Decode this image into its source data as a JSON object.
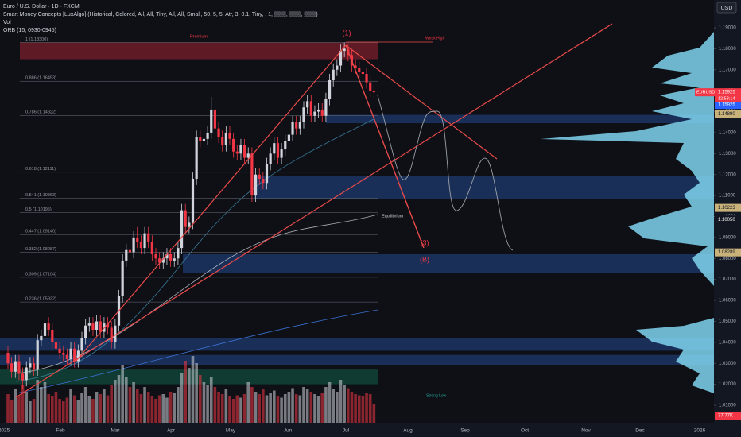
{
  "chart_data": {
    "type": "candlestick",
    "header": {
      "symbol_line": "Euro / U.S. Dollar · 1D · FXCM",
      "indicator_1": "Smart Money Concepts [LuxAlgo] (Historical, Colored, All, All, Tiny, All, All, Small, 50, 5, 5, Atr, 3, 0.1, Tiny, , 1, ▒▒▒, ▒▒▒, ▒▒▒)",
      "indicator_2": "Vol",
      "indicator_3": "ORB (15, 0930-0945)"
    },
    "currency_button": "USD",
    "up_color": "#d1d4dc",
    "down_color": "#f23645",
    "ohlc": [
      [
        1.035,
        1.038,
        1.027,
        1.03
      ],
      [
        1.03,
        1.033,
        1.023,
        1.026
      ],
      [
        1.026,
        1.034,
        1.023,
        1.031
      ],
      [
        1.031,
        1.034,
        1.022,
        1.025
      ],
      [
        1.025,
        1.028,
        1.018,
        1.022
      ],
      [
        1.022,
        1.031,
        1.019,
        1.028
      ],
      [
        1.028,
        1.033,
        1.025,
        1.03
      ],
      [
        1.03,
        1.033,
        1.024,
        1.027
      ],
      [
        1.027,
        1.044,
        1.024,
        1.041
      ],
      [
        1.041,
        1.046,
        1.038,
        1.043
      ],
      [
        1.043,
        1.052,
        1.04,
        1.049
      ],
      [
        1.049,
        1.052,
        1.043,
        1.046
      ],
      [
        1.046,
        1.049,
        1.037,
        1.04
      ],
      [
        1.04,
        1.043,
        1.034,
        1.037
      ],
      [
        1.037,
        1.04,
        1.032,
        1.035
      ],
      [
        1.035,
        1.038,
        1.031,
        1.034
      ],
      [
        1.034,
        1.037,
        1.029,
        1.032
      ],
      [
        1.032,
        1.04,
        1.029,
        1.037
      ],
      [
        1.037,
        1.04,
        1.028,
        1.031
      ],
      [
        1.031,
        1.039,
        1.028,
        1.036
      ],
      [
        1.036,
        1.045,
        1.033,
        1.042
      ],
      [
        1.042,
        1.051,
        1.039,
        1.048
      ],
      [
        1.048,
        1.052,
        1.045,
        1.049
      ],
      [
        1.049,
        1.052,
        1.043,
        1.046
      ],
      [
        1.046,
        1.053,
        1.043,
        1.05
      ],
      [
        1.05,
        1.053,
        1.042,
        1.045
      ],
      [
        1.045,
        1.052,
        1.042,
        1.049
      ],
      [
        1.049,
        1.052,
        1.044,
        1.047
      ],
      [
        1.047,
        1.05,
        1.037,
        1.04
      ],
      [
        1.04,
        1.051,
        1.037,
        1.048
      ],
      [
        1.048,
        1.065,
        1.045,
        1.062
      ],
      [
        1.062,
        1.082,
        1.059,
        1.079
      ],
      [
        1.079,
        1.087,
        1.076,
        1.084
      ],
      [
        1.084,
        1.087,
        1.08,
        1.083
      ],
      [
        1.083,
        1.093,
        1.08,
        1.09
      ],
      [
        1.09,
        1.095,
        1.085,
        1.088
      ],
      [
        1.088,
        1.091,
        1.082,
        1.085
      ],
      [
        1.085,
        1.095,
        1.082,
        1.092
      ],
      [
        1.092,
        1.095,
        1.085,
        1.088
      ],
      [
        1.088,
        1.091,
        1.079,
        1.082
      ],
      [
        1.082,
        1.085,
        1.077,
        1.08
      ],
      [
        1.08,
        1.083,
        1.075,
        1.078
      ],
      [
        1.078,
        1.083,
        1.075,
        1.08
      ],
      [
        1.08,
        1.085,
        1.077,
        1.082
      ],
      [
        1.082,
        1.085,
        1.076,
        1.079
      ],
      [
        1.079,
        1.083,
        1.076,
        1.08
      ],
      [
        1.08,
        1.088,
        1.077,
        1.085
      ],
      [
        1.085,
        1.106,
        1.082,
        1.103
      ],
      [
        1.103,
        1.106,
        1.092,
        1.095
      ],
      [
        1.095,
        1.1,
        1.092,
        1.097
      ],
      [
        1.097,
        1.121,
        1.094,
        1.118
      ],
      [
        1.118,
        1.141,
        1.115,
        1.138
      ],
      [
        1.138,
        1.141,
        1.133,
        1.136
      ],
      [
        1.136,
        1.14,
        1.133,
        1.137
      ],
      [
        1.137,
        1.143,
        1.134,
        1.14
      ],
      [
        1.14,
        1.157,
        1.137,
        1.151
      ],
      [
        1.151,
        1.154,
        1.139,
        1.142
      ],
      [
        1.142,
        1.145,
        1.135,
        1.138
      ],
      [
        1.138,
        1.141,
        1.131,
        1.134
      ],
      [
        1.134,
        1.143,
        1.131,
        1.14
      ],
      [
        1.14,
        1.143,
        1.134,
        1.137
      ],
      [
        1.137,
        1.14,
        1.128,
        1.131
      ],
      [
        1.131,
        1.134,
        1.127,
        1.13
      ],
      [
        1.13,
        1.137,
        1.127,
        1.134
      ],
      [
        1.134,
        1.137,
        1.125,
        1.128
      ],
      [
        1.128,
        1.133,
        1.125,
        1.13
      ],
      [
        1.13,
        1.133,
        1.107,
        1.11
      ],
      [
        1.11,
        1.123,
        1.107,
        1.12
      ],
      [
        1.12,
        1.123,
        1.115,
        1.118
      ],
      [
        1.118,
        1.121,
        1.113,
        1.116
      ],
      [
        1.116,
        1.128,
        1.113,
        1.125
      ],
      [
        1.125,
        1.133,
        1.122,
        1.13
      ],
      [
        1.13,
        1.138,
        1.127,
        1.135
      ],
      [
        1.135,
        1.138,
        1.125,
        1.128
      ],
      [
        1.128,
        1.135,
        1.125,
        1.132
      ],
      [
        1.132,
        1.139,
        1.129,
        1.136
      ],
      [
        1.136,
        1.142,
        1.133,
        1.139
      ],
      [
        1.139,
        1.148,
        1.136,
        1.145
      ],
      [
        1.145,
        1.148,
        1.139,
        1.142
      ],
      [
        1.142,
        1.148,
        1.139,
        1.145
      ],
      [
        1.145,
        1.155,
        1.142,
        1.152
      ],
      [
        1.152,
        1.158,
        1.149,
        1.155
      ],
      [
        1.155,
        1.158,
        1.145,
        1.148
      ],
      [
        1.148,
        1.153,
        1.145,
        1.15
      ],
      [
        1.15,
        1.154,
        1.147,
        1.151
      ],
      [
        1.151,
        1.154,
        1.145,
        1.148
      ],
      [
        1.148,
        1.159,
        1.145,
        1.156
      ],
      [
        1.156,
        1.168,
        1.153,
        1.165
      ],
      [
        1.165,
        1.173,
        1.162,
        1.17
      ],
      [
        1.17,
        1.175,
        1.167,
        1.172
      ],
      [
        1.172,
        1.182,
        1.169,
        1.179
      ],
      [
        1.179,
        1.183,
        1.176,
        1.18
      ],
      [
        1.18,
        1.182,
        1.174,
        1.177
      ],
      [
        1.177,
        1.18,
        1.169,
        1.172
      ],
      [
        1.172,
        1.175,
        1.168,
        1.171
      ],
      [
        1.171,
        1.174,
        1.166,
        1.169
      ],
      [
        1.169,
        1.172,
        1.165,
        1.168
      ],
      [
        1.168,
        1.171,
        1.161,
        1.164
      ],
      [
        1.164,
        1.167,
        1.157,
        1.16
      ],
      [
        1.16,
        1.163,
        1.156,
        1.15925
      ]
    ],
    "volume": [
      120,
      95,
      140,
      110,
      160,
      130,
      90,
      100,
      180,
      150,
      170,
      120,
      110,
      130,
      100,
      90,
      105,
      140,
      115,
      95,
      125,
      150,
      110,
      100,
      130,
      120,
      140,
      115,
      160,
      180,
      200,
      240,
      190,
      150,
      170,
      140,
      120,
      150,
      130,
      110,
      100,
      115,
      120,
      105,
      130,
      125,
      150,
      210,
      260,
      230,
      280,
      250,
      200,
      170,
      160,
      190,
      150,
      130,
      120,
      140,
      110,
      100,
      115,
      105,
      120,
      170,
      150,
      130,
      120,
      140,
      115,
      125,
      135,
      110,
      105,
      120,
      130,
      145,
      120,
      115,
      150,
      140,
      130,
      120,
      110,
      125,
      150,
      170,
      140,
      130,
      180,
      160,
      145,
      130,
      120,
      115,
      110,
      125,
      120,
      77.77
    ],
    "volume_lim": [
      0,
      400
    ],
    "ylim": [
      1.01,
      1.19
    ],
    "yticks": [
      {
        "value": 1.19,
        "label": "1.19000"
      },
      {
        "value": 1.18,
        "label": "1.18000"
      },
      {
        "value": 1.17,
        "label": "1.17000"
      },
      {
        "value": 1.16,
        "label": "1.16000"
      },
      {
        "value": 1.15,
        "label": "1.15000"
      },
      {
        "value": 1.14,
        "label": "1.14000"
      },
      {
        "value": 1.13,
        "label": "1.13000"
      },
      {
        "value": 1.12,
        "label": "1.12000"
      },
      {
        "value": 1.11,
        "label": "1.11000"
      },
      {
        "value": 1.1,
        "label": "1.10000"
      },
      {
        "value": 1.09,
        "label": "1.09000"
      },
      {
        "value": 1.08,
        "label": "1.08000"
      },
      {
        "value": 1.07,
        "label": "1.07000"
      },
      {
        "value": 1.06,
        "label": "1.06000"
      },
      {
        "value": 1.05,
        "label": "1.05000"
      },
      {
        "value": 1.04,
        "label": "1.04000"
      },
      {
        "value": 1.03,
        "label": "1.03000"
      },
      {
        "value": 1.02,
        "label": "1.02000"
      },
      {
        "value": 1.01,
        "label": "1.01000"
      }
    ],
    "x_labels": [
      "2025",
      "Feb",
      "Mar",
      "Apr",
      "May",
      "Jun",
      "Jul",
      "Aug",
      "Sep",
      "Oct",
      "Nov",
      "Dec",
      "2026"
    ],
    "fib_levels": [
      {
        "value": 1.183,
        "label": "1 (1.18300)"
      },
      {
        "value": 1.16453,
        "label": "0.886 (1.16453)"
      },
      {
        "value": 1.14822,
        "label": "0.786 (1.14822)"
      },
      {
        "value": 1.12111,
        "label": "0.618 (1.12111)"
      },
      {
        "value": 1.10863,
        "label": "0.541 (1.10863)"
      },
      {
        "value": 1.10195,
        "label": "0.5 (1.10195)"
      },
      {
        "value": 1.0914,
        "label": "0.447 (1.09140)"
      },
      {
        "value": 1.08287,
        "label": "0.382 (1.08287)"
      },
      {
        "value": 1.07104,
        "label": "0.309 (1.07104)"
      },
      {
        "value": 1.05922,
        "label": "0.236 (1.05922)"
      }
    ],
    "zones": [
      {
        "from": 1.175,
        "to": 1.183,
        "color": "#7a1f2b"
      },
      {
        "from": 1.1445,
        "to": 1.1485,
        "color": "#1e3a6e"
      },
      {
        "from": 1.1085,
        "to": 1.1195,
        "color": "#1e3a6e"
      },
      {
        "from": 1.073,
        "to": 1.082,
        "color": "#1e3a6e"
      },
      {
        "from": 1.036,
        "to": 1.042,
        "color": "#1e3a6e"
      },
      {
        "from": 1.029,
        "to": 1.034,
        "color": "#1e3a6e"
      },
      {
        "from": 1.02,
        "to": 1.027,
        "color": "#124a3c"
      }
    ],
    "annotations": {
      "premium": "Premium",
      "weak_high": "Weak High",
      "equilibrium": "Equilibrium",
      "strong_low": "Strong Low",
      "wave_1": "(1)",
      "wave_3": "(3)",
      "wave_b": "(B)"
    },
    "price_labels": [
      {
        "value": 1.15925,
        "label": "1.15925",
        "color": "#f23645"
      },
      {
        "value": 1.15925,
        "label": "1.15925",
        "color": "#2962ff"
      },
      {
        "value": 1.1489,
        "label": "1.14890",
        "color": "#c9b27a"
      },
      {
        "value": 1.10223,
        "label": "1.10223",
        "color": "#c9b27a"
      },
      {
        "value": 1.1005,
        "label": "1.10050",
        "color": "#131722"
      },
      {
        "value": 1.08289,
        "label": "1.08289",
        "color": "#c9b27a"
      }
    ],
    "symbol_tag": "EURUSD",
    "countdown": "12:53:14",
    "volume_label": "77.77K"
  }
}
